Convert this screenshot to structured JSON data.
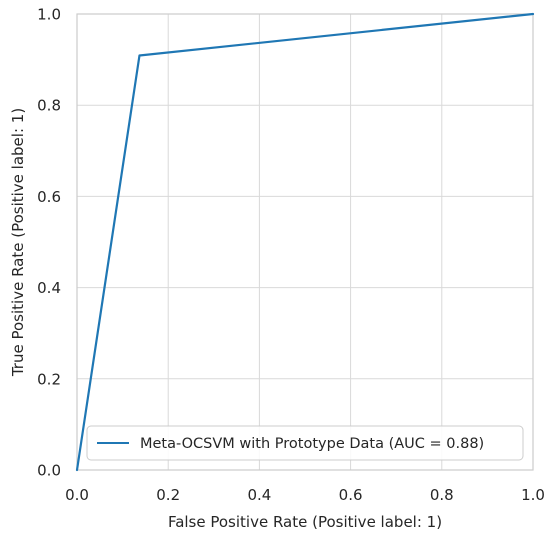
{
  "chart_data": {
    "type": "line",
    "title": "",
    "xlabel": "False Positive Rate (Positive label: 1)",
    "ylabel": "True Positive Rate (Positive label: 1)",
    "xlim": [
      0.0,
      1.0
    ],
    "ylim": [
      0.0,
      1.0
    ],
    "xticks": [
      0.0,
      0.2,
      0.4,
      0.6,
      0.8,
      1.0
    ],
    "yticks": [
      0.0,
      0.2,
      0.4,
      0.6,
      0.8,
      1.0
    ],
    "xtick_labels": [
      "0.0",
      "0.2",
      "0.4",
      "0.6",
      "0.8",
      "1.0"
    ],
    "ytick_labels": [
      "0.0",
      "0.2",
      "0.4",
      "0.6",
      "0.8",
      "1.0"
    ],
    "grid": true,
    "legend_position": "lower-right",
    "series": [
      {
        "name": "Meta-OCSVM with Prototype Data (AUC = 0.88)",
        "color": "#1f77b4",
        "x": [
          0.0,
          0.137,
          1.0
        ],
        "y": [
          0.0,
          0.909,
          1.0
        ]
      }
    ],
    "colors": {
      "background": "#ffffff",
      "grid": "#d9d9d9",
      "frame": "#cccccc",
      "text": "#262626"
    }
  }
}
